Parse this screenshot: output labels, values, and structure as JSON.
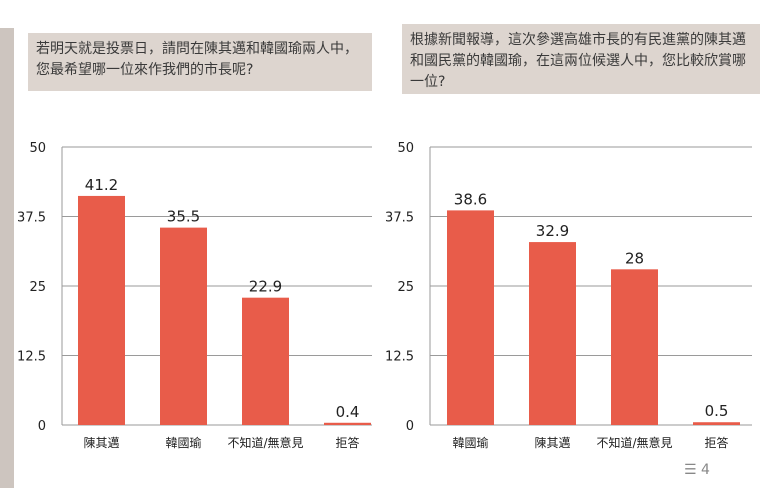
{
  "questions": {
    "q1": "若明天就是投票日，請問在陳其邁和韓國瑜兩人中，您最希望哪一位來作我們的市長呢?",
    "q2": "根據新聞報導，這次參選高雄市長的有民進黨的陳其邁和國民黨的韓國瑜，在這兩位候選人中，您比較欣賞哪一位?"
  },
  "footer": {
    "page_label": "4"
  },
  "chart_data": [
    {
      "type": "bar",
      "categories": [
        "陳其邁",
        "韓國瑜",
        "不知道/無意見",
        "拒答"
      ],
      "values": [
        41.2,
        35.5,
        22.9,
        0.4
      ],
      "yticks": [
        "0",
        "12.5",
        "25",
        "37.5",
        "50"
      ],
      "ylim": [
        0,
        50
      ],
      "grid": true,
      "bar_color": "#e85c4a"
    },
    {
      "type": "bar",
      "categories": [
        "韓國瑜",
        "陳其邁",
        "不知道/無意見",
        "拒答"
      ],
      "values": [
        38.6,
        32.9,
        28,
        0.5
      ],
      "yticks": [
        "0",
        "12.5",
        "25",
        "37.5",
        "50"
      ],
      "ylim": [
        0,
        50
      ],
      "grid": true,
      "bar_color": "#e85c4a"
    }
  ]
}
